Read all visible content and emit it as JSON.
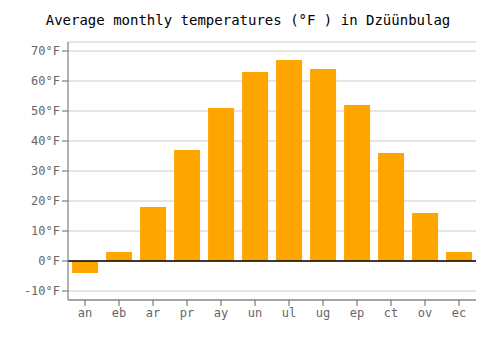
{
  "chart_data": {
    "type": "bar",
    "title": "Average monthly temperatures (°F ) in Dzüünbulag",
    "categories": [
      "an",
      "eb",
      "ar",
      "pr",
      "ay",
      "un",
      "ul",
      "ug",
      "ep",
      "ct",
      "ov",
      "ec"
    ],
    "values": [
      -4,
      3,
      18,
      37,
      51,
      63,
      67,
      64,
      52,
      36,
      16,
      3
    ],
    "color": "#FFA500",
    "ylim": [
      -13,
      73
    ],
    "yticks": [
      {
        "value": -10,
        "label": "-10°F"
      },
      {
        "value": 0,
        "label": "0°F"
      },
      {
        "value": 10,
        "label": "10°F"
      },
      {
        "value": 20,
        "label": "20°F"
      },
      {
        "value": 30,
        "label": "30°F"
      },
      {
        "value": 40,
        "label": "40°F"
      },
      {
        "value": 50,
        "label": "50°F"
      },
      {
        "value": 60,
        "label": "60°F"
      },
      {
        "value": 70,
        "label": "70°F"
      }
    ],
    "grid": true
  }
}
